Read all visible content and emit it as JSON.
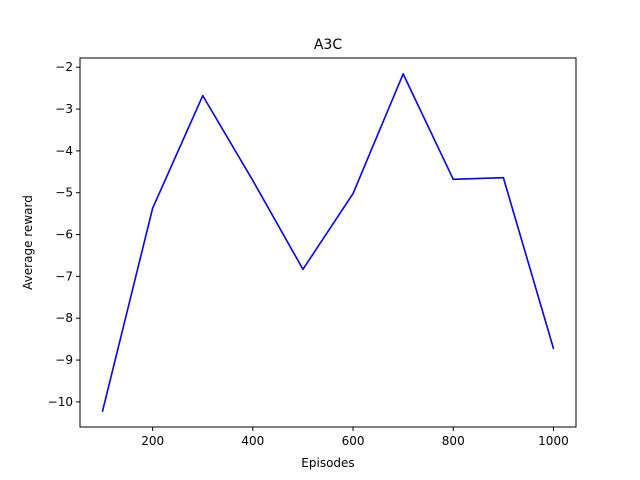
{
  "chart_data": {
    "type": "line",
    "title": "A3C",
    "xlabel": "Episodes",
    "ylabel": "Average reward",
    "xlim": [
      55,
      1045
    ],
    "ylim": [
      -10.6,
      -1.78
    ],
    "x_ticks": [
      200,
      400,
      600,
      800,
      1000
    ],
    "y_ticks": [
      -10,
      -9,
      -8,
      -7,
      -6,
      -5,
      -4,
      -3,
      -2
    ],
    "grid": false,
    "series": [
      {
        "color": "#0000ff",
        "x": [
          100,
          200,
          300,
          400,
          500,
          600,
          700,
          800,
          900,
          1000
        ],
        "y": [
          -10.22,
          -5.37,
          -2.68,
          -4.71,
          -6.83,
          -5.02,
          -2.16,
          -4.68,
          -4.64,
          -8.72
        ]
      }
    ]
  }
}
